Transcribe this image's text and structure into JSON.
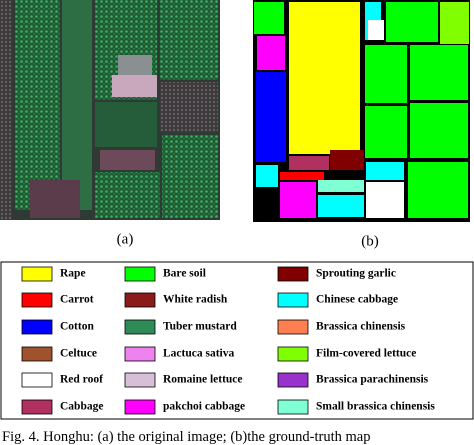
{
  "panels": [
    {
      "label": "(a)"
    },
    {
      "label": "(b)"
    }
  ],
  "legend": [
    {
      "name": "Rape",
      "color": "#ffff00"
    },
    {
      "name": "Carrot",
      "color": "#ff0000"
    },
    {
      "name": "Cotton",
      "color": "#0000ff"
    },
    {
      "name": "Celtuce",
      "color": "#a0522d"
    },
    {
      "name": "Red roof",
      "color": "#ffffff"
    },
    {
      "name": "Cabbage",
      "color": "#b03060"
    },
    {
      "name": "Bare soil",
      "color": "#00ff00"
    },
    {
      "name": "White radish",
      "color": "#8b1a1a"
    },
    {
      "name": "Tuber mustard",
      "color": "#2e8b57"
    },
    {
      "name": "Lactuca sativa",
      "color": "#ee82ee"
    },
    {
      "name": "Romaine lettuce",
      "color": "#d8bfd8"
    },
    {
      "name": "pakchoi cabbage",
      "color": "#ff00ff"
    },
    {
      "name": "Sprouting garlic",
      "color": "#800000"
    },
    {
      "name": "Chinese cabbage",
      "color": "#00ffff"
    },
    {
      "name": "Brassica chinensis",
      "color": "#ff7f50"
    },
    {
      "name": "Film-covered  lettuce",
      "color": "#7fff00"
    },
    {
      "name": "Brassica parachinensis",
      "color": "#9932cc"
    },
    {
      "name": "Small brassica chinensis",
      "color": "#7fffd4"
    }
  ],
  "caption": "Fig. 4. Honghu: (a) the original image; (b)the ground-truth map"
}
